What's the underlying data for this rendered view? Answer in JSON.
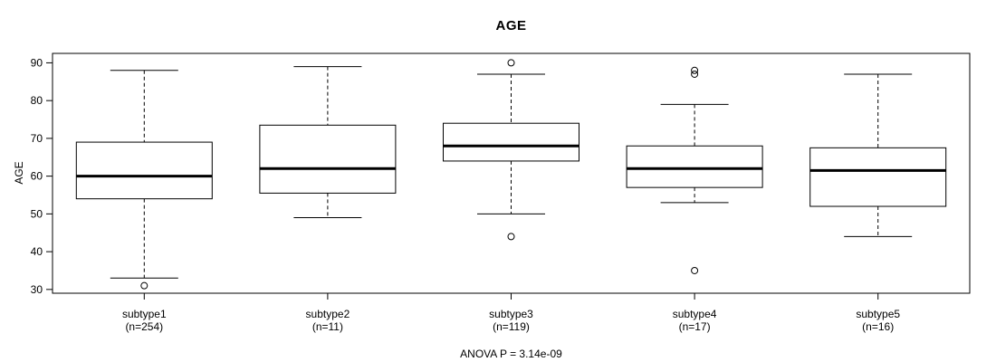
{
  "chart_data": {
    "type": "boxplot",
    "title": "AGE",
    "ylabel": "AGE",
    "footer": "ANOVA P = 3.14e-09",
    "yticks": [
      30,
      40,
      50,
      60,
      70,
      80,
      90
    ],
    "ylim": [
      29,
      92.5
    ],
    "grid": false,
    "box_color": "#000000",
    "background_color": "#ffffff",
    "groups": [
      {
        "label": "subtype1",
        "sublabel": "(n=254)",
        "low": 33,
        "q1": 54,
        "median": 60,
        "q3": 69,
        "high": 88,
        "outliers": [
          31
        ]
      },
      {
        "label": "subtype2",
        "sublabel": "(n=11)",
        "low": 49,
        "q1": 55.5,
        "median": 62,
        "q3": 73.5,
        "high": 89,
        "outliers": []
      },
      {
        "label": "subtype3",
        "sublabel": "(n=119)",
        "low": 50,
        "q1": 64,
        "median": 68,
        "q3": 74,
        "high": 87,
        "outliers": [
          90,
          44
        ]
      },
      {
        "label": "subtype4",
        "sublabel": "(n=17)",
        "low": 53,
        "q1": 57,
        "median": 62,
        "q3": 68,
        "high": 79,
        "outliers": [
          88,
          87,
          35
        ]
      },
      {
        "label": "subtype5",
        "sublabel": "(n=16)",
        "low": 44,
        "q1": 52,
        "median": 61.5,
        "q3": 67.5,
        "high": 87,
        "outliers": []
      }
    ]
  }
}
